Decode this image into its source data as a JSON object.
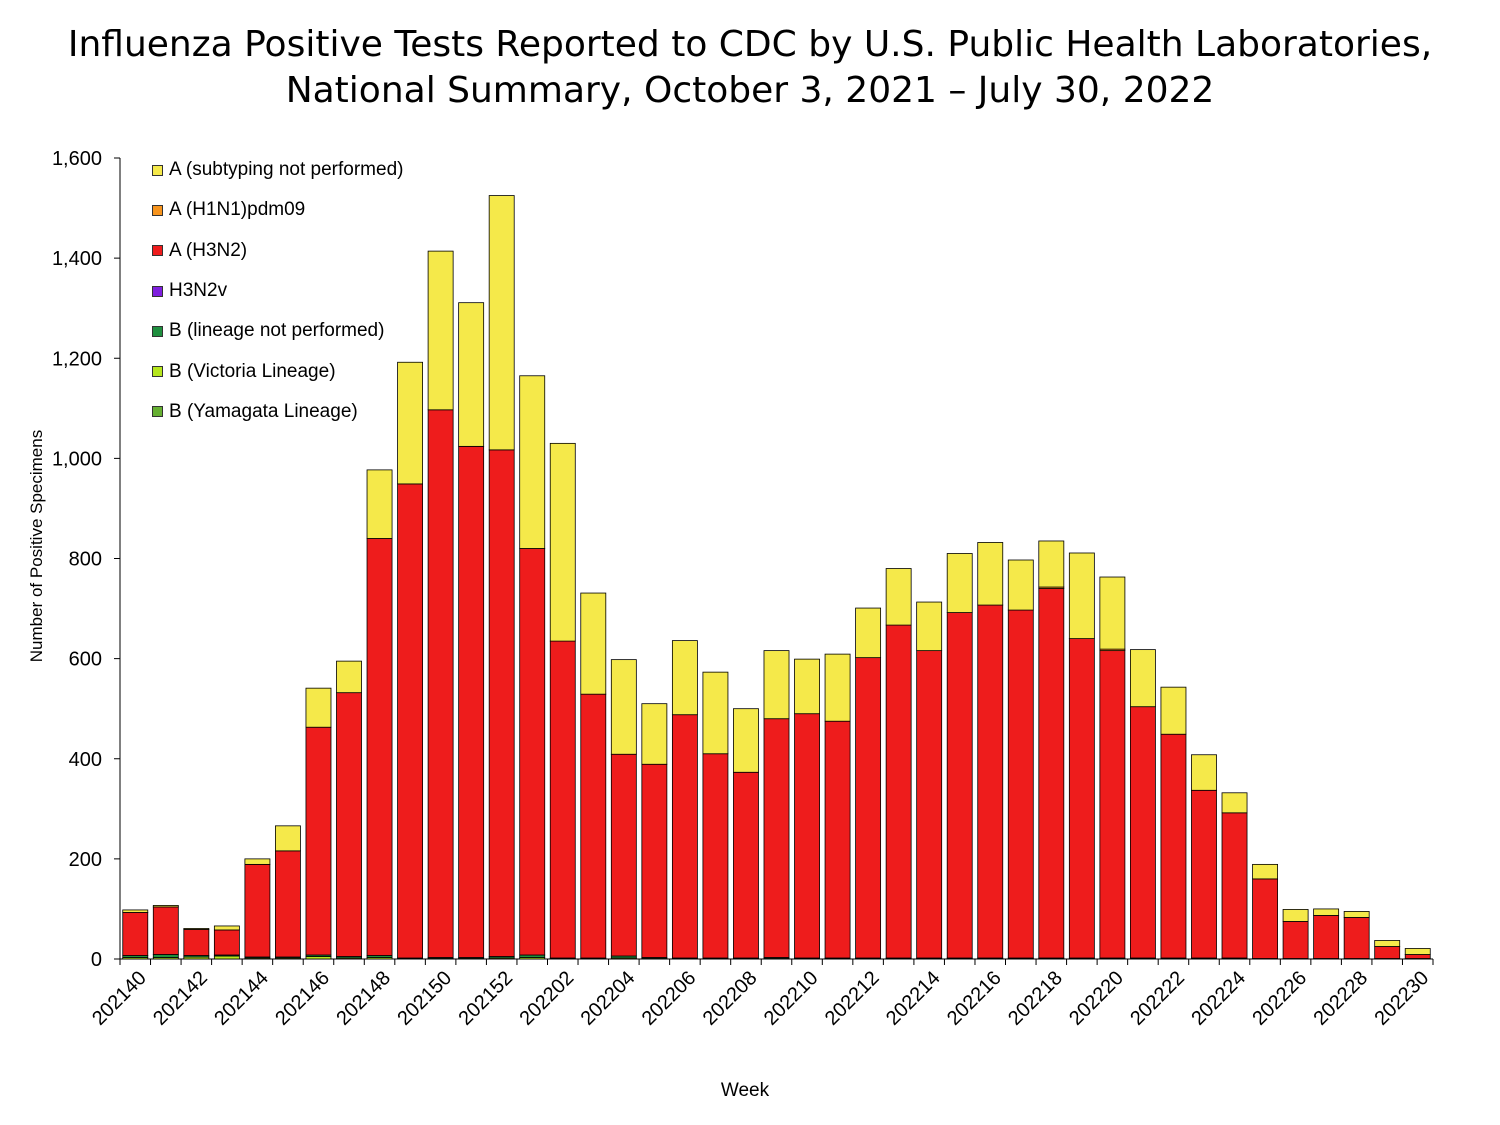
{
  "title": {
    "line1": "Influenza Positive Tests Reported to CDC by U.S. Public Health Laboratories,",
    "line2": "National Summary, October 3, 2021 – July 30, 2022"
  },
  "chart_data": {
    "type": "bar",
    "stacked": true,
    "xlabel": "Week",
    "ylabel": "Number of Positive Specimens",
    "ylim": [
      0,
      1600
    ],
    "yticks": [
      0,
      200,
      400,
      600,
      800,
      1000,
      1200,
      1400,
      1600
    ],
    "ytick_labels": [
      "0",
      "200",
      "400",
      "600",
      "800",
      "1,000",
      "1,200",
      "1,400",
      "1,600"
    ],
    "xtick_labels": [
      "202140",
      "202142",
      "202144",
      "202146",
      "202148",
      "202150",
      "202152",
      "202202",
      "202204",
      "202206",
      "202208",
      "202210",
      "202212",
      "202214",
      "202216",
      "202218",
      "202220",
      "202222",
      "202224",
      "202226",
      "202228",
      "202230"
    ],
    "categories": [
      "202140",
      "202141",
      "202142",
      "202143",
      "202144",
      "202145",
      "202146",
      "202147",
      "202148",
      "202149",
      "202150",
      "202151",
      "202152",
      "202201",
      "202202",
      "202203",
      "202204",
      "202205",
      "202206",
      "202207",
      "202208",
      "202209",
      "202210",
      "202211",
      "202212",
      "202213",
      "202214",
      "202215",
      "202216",
      "202217",
      "202218",
      "202219",
      "202220",
      "202221",
      "202222",
      "202223",
      "202224",
      "202225",
      "202226",
      "202227",
      "202228",
      "202229",
      "202230"
    ],
    "legend_position": "top-left",
    "series": [
      {
        "name": "B (Yamagata Lineage)",
        "color": "#66b032",
        "values": [
          0,
          0,
          0,
          0,
          0,
          0,
          0,
          0,
          0,
          0,
          0,
          0,
          0,
          0,
          0,
          0,
          0,
          0,
          0,
          0,
          0,
          0,
          0,
          0,
          0,
          0,
          0,
          0,
          0,
          0,
          0,
          0,
          0,
          0,
          0,
          0,
          0,
          0,
          0,
          0,
          0,
          0,
          0
        ]
      },
      {
        "name": "B (Victoria Lineage)",
        "color": "#b5e61d",
        "values": [
          3,
          3,
          4,
          6,
          2,
          2,
          5,
          2,
          3,
          1,
          1,
          1,
          2,
          3,
          1,
          1,
          2,
          1,
          1,
          1,
          1,
          1,
          1,
          1,
          1,
          1,
          1,
          1,
          1,
          1,
          1,
          1,
          1,
          1,
          1,
          1,
          1,
          0,
          0,
          0,
          0,
          0,
          0
        ]
      },
      {
        "name": "B (lineage not performed)",
        "color": "#1f8f3f",
        "values": [
          4,
          6,
          3,
          2,
          2,
          2,
          3,
          3,
          4,
          1,
          2,
          2,
          3,
          5,
          1,
          1,
          4,
          2,
          1,
          1,
          1,
          2,
          1,
          1,
          1,
          1,
          1,
          1,
          1,
          1,
          1,
          1,
          1,
          1,
          1,
          1,
          1,
          1,
          1,
          1,
          1,
          1,
          1
        ]
      },
      {
        "name": "H3N2v",
        "color": "#7f1fdf",
        "values": [
          0,
          0,
          0,
          0,
          0,
          0,
          0,
          0,
          0,
          0,
          0,
          0,
          0,
          0,
          0,
          0,
          0,
          0,
          0,
          0,
          0,
          0,
          0,
          0,
          0,
          0,
          0,
          0,
          0,
          0,
          0,
          0,
          0,
          0,
          0,
          0,
          0,
          0,
          0,
          0,
          0,
          0,
          0
        ]
      },
      {
        "name": "A (H3N2)",
        "color": "#ee1c1c",
        "values": [
          86,
          95,
          52,
          50,
          185,
          212,
          455,
          527,
          833,
          947,
          1094,
          1021,
          1012,
          812,
          633,
          527,
          403,
          386,
          486,
          408,
          371,
          477,
          488,
          473,
          600,
          665,
          614,
          690,
          705,
          695,
          738,
          638,
          614,
          502,
          447,
          335,
          290,
          159,
          74,
          86,
          82,
          24,
          8
        ]
      },
      {
        "name": "A (H1N1)pdm09",
        "color": "#f7941d",
        "values": [
          0,
          0,
          0,
          0,
          0,
          0,
          0,
          0,
          0,
          0,
          0,
          0,
          0,
          0,
          0,
          0,
          0,
          0,
          0,
          0,
          0,
          0,
          0,
          0,
          0,
          0,
          0,
          0,
          0,
          0,
          3,
          0,
          3,
          0,
          0,
          0,
          0,
          0,
          0,
          0,
          0,
          0,
          0
        ]
      },
      {
        "name": "A (subtyping not performed)",
        "color": "#f5e94a",
        "values": [
          5,
          3,
          2,
          8,
          11,
          50,
          78,
          63,
          137,
          243,
          317,
          287,
          508,
          345,
          395,
          202,
          189,
          121,
          148,
          163,
          127,
          136,
          109,
          134,
          99,
          113,
          97,
          118,
          125,
          100,
          92,
          171,
          144,
          114,
          94,
          71,
          40,
          29,
          24,
          13,
          12,
          12,
          12
        ]
      }
    ]
  }
}
